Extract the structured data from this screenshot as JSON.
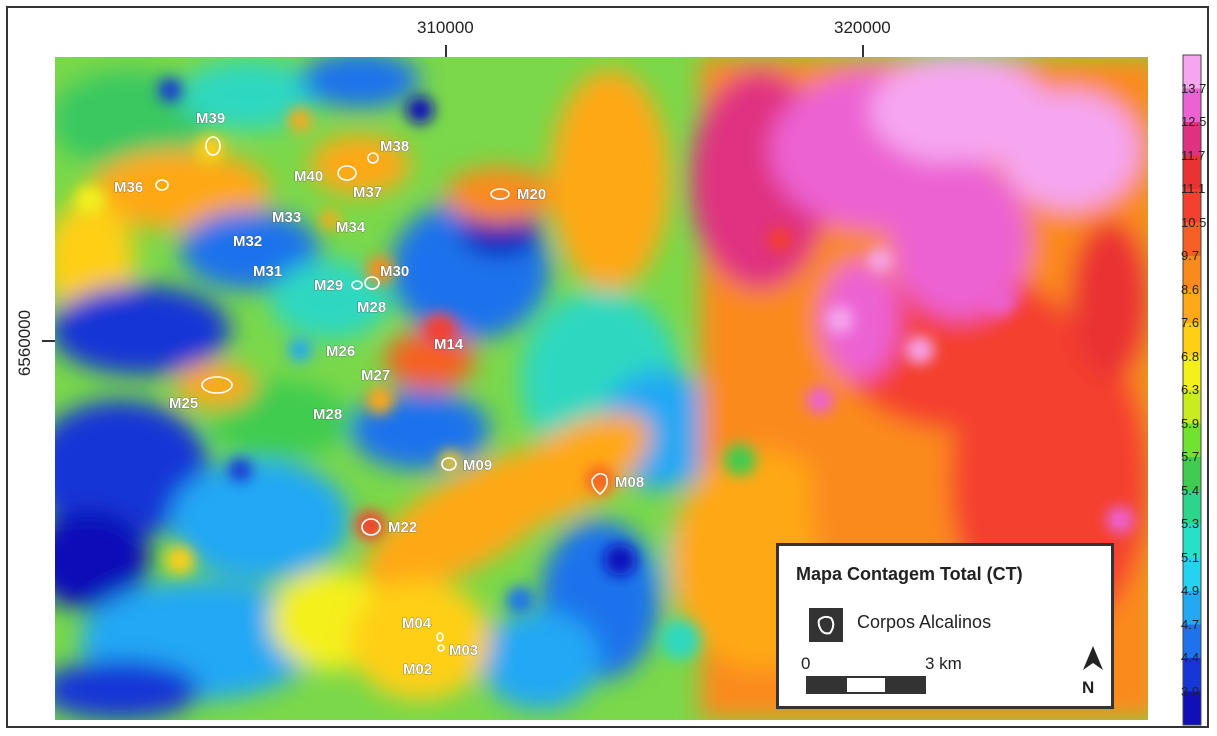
{
  "map": {
    "title": "Mapa Contagem Total (CT)",
    "x_ticks": [
      "310000",
      "320000"
    ],
    "y_ticks": [
      "6560000"
    ]
  },
  "colorbar": {
    "labels": [
      "13.7",
      "12.5",
      "11.7",
      "11.1",
      "10.5",
      "9.7",
      "8.6",
      "7.6",
      "6.8",
      "6.3",
      "5.9",
      "5.7",
      "5.4",
      "5.3",
      "5.1",
      "4.9",
      "4.7",
      "4.4",
      "3.9"
    ],
    "colors": [
      "#f6a6f0",
      "#ec62d2",
      "#e03080",
      "#ea3232",
      "#f4402e",
      "#f66024",
      "#fb8a1c",
      "#ffa818",
      "#ffcf16",
      "#f4f01a",
      "#c8ec20",
      "#70e230",
      "#40cc50",
      "#2dd48c",
      "#26e0c8",
      "#26d2f2",
      "#24a8f4",
      "#1e72ec",
      "#1636d6",
      "#1010b8"
    ]
  },
  "bodies": [
    "M39",
    "M36",
    "M40",
    "M38",
    "M37",
    "M20",
    "M33",
    "M34",
    "M32",
    "M31",
    "M29",
    "M30",
    "M28",
    "M26",
    "M14",
    "M27",
    "M25",
    "M28",
    "M09",
    "M08",
    "M22",
    "M04",
    "M03",
    "M02"
  ],
  "legend": {
    "symbol_label": "Corpos Alcalinos",
    "scale_start": "0",
    "scale_end": "3 km",
    "north": "N"
  },
  "icons": [
    "alkaline-body-icon",
    "north-arrow-icon"
  ]
}
